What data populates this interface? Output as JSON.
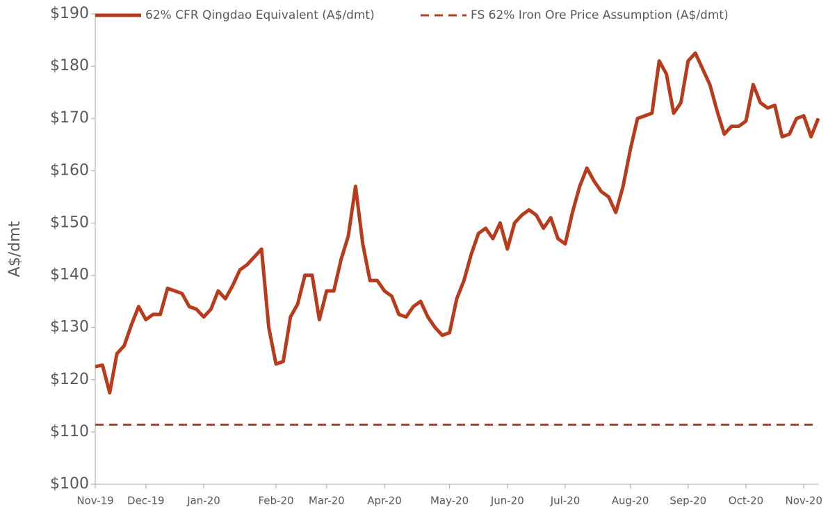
{
  "chart_data": {
    "type": "line",
    "ylabel": "A$/dmt",
    "categories": [
      "Nov-19",
      null,
      null,
      null,
      null,
      null,
      null,
      "Dec-19",
      null,
      null,
      null,
      null,
      null,
      null,
      null,
      "Jan-20",
      null,
      null,
      null,
      null,
      null,
      null,
      null,
      null,
      null,
      "Feb-20",
      null,
      null,
      null,
      null,
      null,
      null,
      "Mar-20",
      null,
      null,
      null,
      null,
      null,
      null,
      null,
      "Apr-20",
      null,
      null,
      null,
      null,
      null,
      null,
      null,
      null,
      "May-20",
      null,
      null,
      null,
      null,
      null,
      null,
      null,
      "Jun-20",
      null,
      null,
      null,
      null,
      null,
      null,
      null,
      "Jul-20",
      null,
      null,
      null,
      null,
      null,
      null,
      null,
      null,
      "Aug-20",
      null,
      null,
      null,
      null,
      null,
      null,
      null,
      "Sep-20",
      null,
      null,
      null,
      null,
      null,
      null,
      null,
      "Oct-20",
      null,
      null,
      null,
      null,
      null,
      null,
      null,
      "Nov-20",
      null,
      null
    ],
    "series": [
      {
        "name": "62% CFR Qingdao Equivalent (A$/dmt)",
        "color": "#b83c1c",
        "dash": false,
        "values": [
          122.5,
          122.8,
          117.5,
          125,
          126.5,
          130.5,
          134,
          131.5,
          132.5,
          132.5,
          137.5,
          137,
          136.5,
          134,
          133.5,
          132,
          133.5,
          137,
          135.5,
          138,
          141,
          142,
          143.5,
          145,
          130,
          123,
          123.5,
          132,
          134.5,
          140,
          140,
          131.5,
          137,
          137,
          143,
          147.5,
          157,
          146,
          139,
          139,
          137,
          136,
          132.5,
          132,
          134,
          135,
          132,
          130,
          128.5,
          129,
          135.5,
          139,
          144,
          148,
          149,
          147,
          150,
          145,
          150,
          151.5,
          152.5,
          151.5,
          149,
          151,
          147,
          146,
          152,
          157,
          160.5,
          158,
          156,
          155,
          152,
          157,
          164,
          170,
          170.5,
          171,
          181,
          178.5,
          171,
          173,
          181,
          182.5,
          179.5,
          176.5,
          171.5,
          167,
          168.5,
          168.5,
          169.5,
          176.5,
          173,
          172,
          172.5,
          166.5,
          167,
          170,
          170.5,
          166.5,
          170
        ]
      },
      {
        "name": "FS 62% Iron Ore Price Assumption (A$/dmt)",
        "color": "#b83c1c",
        "dash": true,
        "values": [
          111.4,
          111.4,
          111.4,
          111.4,
          111.4,
          111.4,
          111.4,
          111.4,
          111.4,
          111.4,
          111.4,
          111.4,
          111.4,
          111.4,
          111.4,
          111.4,
          111.4,
          111.4,
          111.4,
          111.4,
          111.4,
          111.4,
          111.4,
          111.4,
          111.4,
          111.4,
          111.4,
          111.4,
          111.4,
          111.4,
          111.4,
          111.4,
          111.4,
          111.4,
          111.4,
          111.4,
          111.4,
          111.4,
          111.4,
          111.4,
          111.4,
          111.4,
          111.4,
          111.4,
          111.4,
          111.4,
          111.4,
          111.4,
          111.4,
          111.4,
          111.4,
          111.4,
          111.4,
          111.4,
          111.4,
          111.4,
          111.4,
          111.4,
          111.4,
          111.4,
          111.4,
          111.4,
          111.4,
          111.4,
          111.4,
          111.4,
          111.4,
          111.4,
          111.4,
          111.4,
          111.4,
          111.4,
          111.4,
          111.4,
          111.4,
          111.4,
          111.4,
          111.4,
          111.4,
          111.4,
          111.4,
          111.4,
          111.4,
          111.4,
          111.4,
          111.4,
          111.4,
          111.4,
          111.4,
          111.4,
          111.4,
          111.4,
          111.4,
          111.4,
          111.4,
          111.4,
          111.4,
          111.4,
          111.4,
          111.4,
          111.4
        ]
      }
    ],
    "ylim": [
      100,
      190
    ],
    "yticks": [
      {
        "value": 100,
        "label": "$100"
      },
      {
        "value": 110,
        "label": "$110"
      },
      {
        "value": 120,
        "label": "$120"
      },
      {
        "value": 130,
        "label": "$130"
      },
      {
        "value": 140,
        "label": "$140"
      },
      {
        "value": 150,
        "label": "$150"
      },
      {
        "value": 160,
        "label": "$160"
      },
      {
        "value": 170,
        "label": "$170"
      },
      {
        "value": 180,
        "label": "$180"
      },
      {
        "value": 190,
        "label": "$190"
      }
    ],
    "grid": false,
    "legend": "top"
  }
}
